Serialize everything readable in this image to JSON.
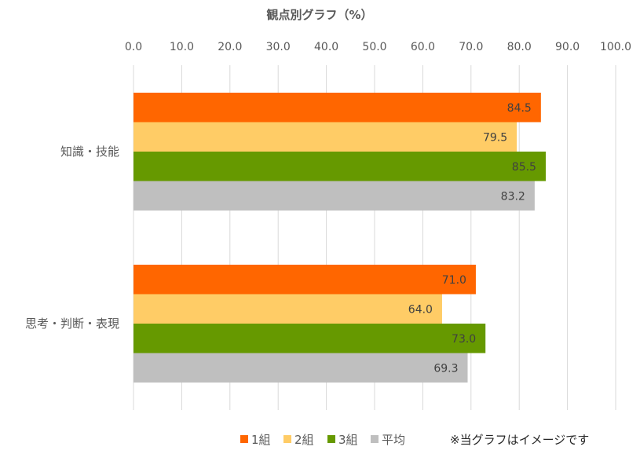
{
  "chart_data": {
    "type": "bar",
    "orientation": "horizontal",
    "title": "観点別グラフ（%）",
    "xlim": [
      0,
      100
    ],
    "x_ticks": [
      "0.0",
      "10.0",
      "20.0",
      "30.0",
      "40.0",
      "50.0",
      "60.0",
      "70.0",
      "80.0",
      "90.0",
      "100.0"
    ],
    "x_tick_values": [
      0,
      10,
      20,
      30,
      40,
      50,
      60,
      70,
      80,
      90,
      100
    ],
    "grid": true,
    "legend_position": "bottom",
    "categories": [
      "知識・技能",
      "思考・判断・表現"
    ],
    "series": [
      {
        "name": "1組",
        "color": "#FF6600",
        "values": [
          84.5,
          71.0
        ],
        "labels": [
          "84.5",
          "71.0"
        ]
      },
      {
        "name": "2組",
        "color": "#FFCC66",
        "values": [
          79.5,
          64.0
        ],
        "labels": [
          "79.5",
          "64.0"
        ]
      },
      {
        "name": "3組",
        "color": "#669900",
        "values": [
          85.5,
          73.0
        ],
        "labels": [
          "85.5",
          "73.0"
        ]
      },
      {
        "name": "平均",
        "color": "#BFBFBF",
        "values": [
          83.2,
          69.3
        ],
        "labels": [
          "83.2",
          "69.3"
        ]
      }
    ],
    "note": "※当グラフはイメージです"
  }
}
